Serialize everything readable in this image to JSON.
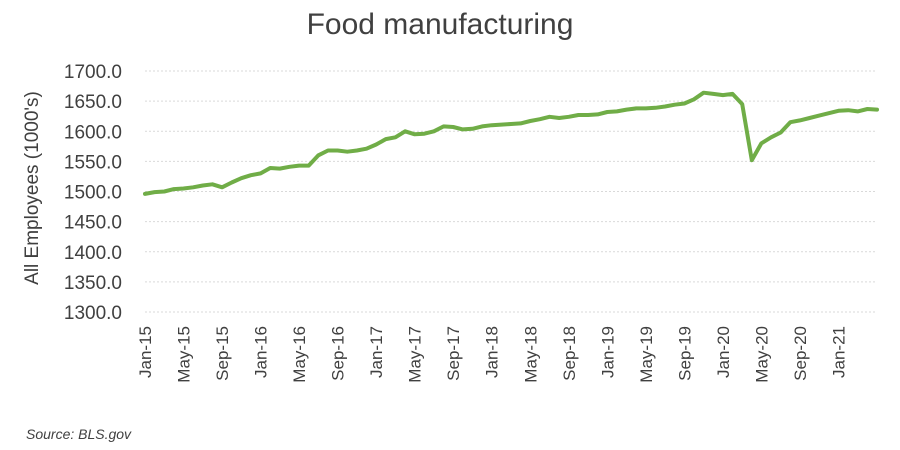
{
  "chart_data": {
    "type": "line",
    "title": "Food manufacturing",
    "xlabel": "",
    "ylabel": "All Employees (1000's)",
    "ylim": [
      1300,
      1700
    ],
    "yticks": [
      1300,
      1350,
      1400,
      1450,
      1500,
      1550,
      1600,
      1650,
      1700
    ],
    "ytick_labels": [
      "1300.0",
      "1350.0",
      "1400.0",
      "1450.0",
      "1500.0",
      "1550.0",
      "1600.0",
      "1650.0",
      "1700.0"
    ],
    "xtick_labels": [
      "Jan-15",
      "May-15",
      "Sep-15",
      "Jan-16",
      "May-16",
      "Sep-16",
      "Jan-17",
      "May-17",
      "Sep-17",
      "Jan-18",
      "May-18",
      "Sep-18",
      "Jan-19",
      "May-19",
      "Sep-19",
      "Jan-20",
      "May-20",
      "Sep-20",
      "Jan-21"
    ],
    "grid": true,
    "line_color": "#70ad47",
    "x": [
      "Jan-15",
      "Feb-15",
      "Mar-15",
      "Apr-15",
      "May-15",
      "Jun-15",
      "Jul-15",
      "Aug-15",
      "Sep-15",
      "Oct-15",
      "Nov-15",
      "Dec-15",
      "Jan-16",
      "Feb-16",
      "Mar-16",
      "Apr-16",
      "May-16",
      "Jun-16",
      "Jul-16",
      "Aug-16",
      "Sep-16",
      "Oct-16",
      "Nov-16",
      "Dec-16",
      "Jan-17",
      "Feb-17",
      "Mar-17",
      "Apr-17",
      "May-17",
      "Jun-17",
      "Jul-17",
      "Aug-17",
      "Sep-17",
      "Oct-17",
      "Nov-17",
      "Dec-17",
      "Jan-18",
      "Feb-18",
      "Mar-18",
      "Apr-18",
      "May-18",
      "Jun-18",
      "Jul-18",
      "Aug-18",
      "Sep-18",
      "Oct-18",
      "Nov-18",
      "Dec-18",
      "Jan-19",
      "Feb-19",
      "Mar-19",
      "Apr-19",
      "May-19",
      "Jun-19",
      "Jul-19",
      "Aug-19",
      "Sep-19",
      "Oct-19",
      "Nov-19",
      "Dec-19",
      "Jan-20",
      "Feb-20",
      "Mar-20",
      "Apr-20",
      "May-20",
      "Jun-20",
      "Jul-20",
      "Aug-20",
      "Sep-20",
      "Oct-20",
      "Nov-20",
      "Dec-20",
      "Jan-21",
      "Feb-21",
      "Mar-21",
      "Apr-21",
      "May-21"
    ],
    "series": [
      {
        "values": [
          1496,
          1499,
          1500,
          1504,
          1505,
          1507,
          1510,
          1512,
          1507,
          1515,
          1522,
          1527,
          1530,
          1539,
          1538,
          1541,
          1543,
          1543,
          1560,
          1568,
          1568,
          1566,
          1568,
          1571,
          1578,
          1587,
          1590,
          1600,
          1595,
          1596,
          1600,
          1608,
          1607,
          1603,
          1604,
          1608,
          1610,
          1611,
          1612,
          1613,
          1617,
          1620,
          1624,
          1622,
          1624,
          1627,
          1627,
          1628,
          1632,
          1633,
          1636,
          1638,
          1638,
          1639,
          1641,
          1644,
          1646,
          1653,
          1664,
          1662,
          1660,
          1662,
          1645,
          1552,
          1580,
          1590,
          1598,
          1615,
          1618,
          1622,
          1626,
          1630,
          1634,
          1635,
          1633,
          1637,
          1636
        ]
      }
    ]
  },
  "footer": {
    "source": "Source: BLS.gov"
  }
}
